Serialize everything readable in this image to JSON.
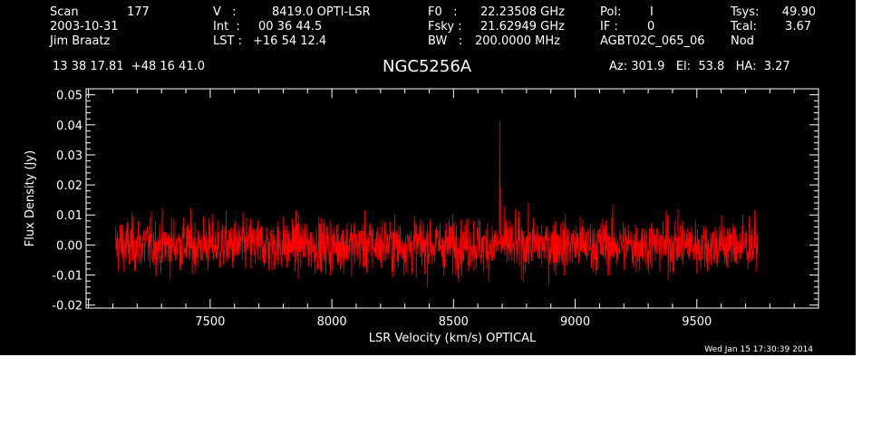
{
  "header": {
    "scan_label": "Scan",
    "scan_value": "177",
    "date": "2003-10-31",
    "observer": "Jim Braatz",
    "coords": "13 38 17.81  +48 16 41.0",
    "v_label": "V   :",
    "v_value": "8419.0 OPTI-LSR",
    "int_label": "Int  :",
    "int_value": "00 36 44.5",
    "lst_label": "LST :",
    "lst_value": "+16 54 12.4",
    "f0_label": "F0   :",
    "f0_value": "22.23508 GHz",
    "fsky_label": "Fsky :",
    "fsky_value": "21.62949 GHz",
    "bw_label": "BW   :",
    "bw_value": "200.0000 MHz",
    "pol_label": "Pol:",
    "pol_value": "I",
    "if_label": "IF :",
    "if_value": "0",
    "project": "AGBT02C_065_06",
    "tsys_label": "Tsys:",
    "tsys_value": "49.90",
    "tcal_label": "Tcal:",
    "tcal_value": "3.67",
    "mode": "Nod",
    "source": "NGC5256A",
    "az_el_ha": "Az: 301.9   El:  53.8   HA:  3.27"
  },
  "timestamp": "Wed Jan 15 17:30:39 2014",
  "chart_data": {
    "type": "line",
    "xlabel": "LSR Velocity (km/s) OPTICAL",
    "ylabel": "Flux Density (Jy)",
    "xlim": [
      6990,
      10000
    ],
    "ylim": [
      -0.021,
      0.052
    ],
    "xticks": [
      7500,
      8000,
      8500,
      9000,
      9500
    ],
    "xtick_labels": [
      "7500",
      "8000",
      "8500",
      "9000",
      "9500"
    ],
    "yticks": [
      -0.02,
      -0.01,
      0.0,
      0.01,
      0.02,
      0.03,
      0.04,
      0.05
    ],
    "ytick_labels": [
      "-0.02",
      "-0.01",
      "0.00",
      "0.01",
      "0.02",
      "0.03",
      "0.04",
      "0.05"
    ],
    "background_color": "#000000",
    "axis_color": "#ffffff",
    "series": [
      {
        "color": "#ff0000",
        "x_range": [
          7110,
          9750
        ],
        "n_channels": 2048,
        "baseline": 0.0,
        "noise_rms": 0.0045,
        "peaks": [
          {
            "x": 8690,
            "y": 0.0415
          },
          {
            "x": 8693,
            "y": 0.0195
          }
        ]
      }
    ]
  }
}
